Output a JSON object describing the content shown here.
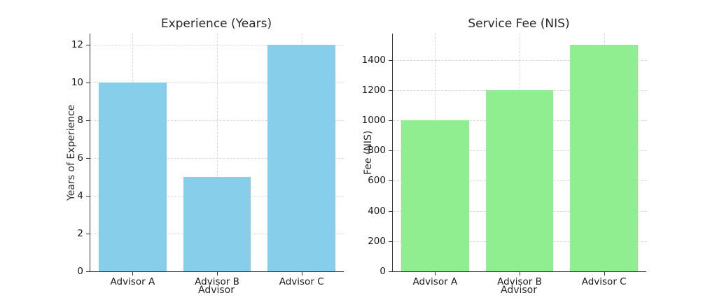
{
  "figure": {
    "background": "#ffffff",
    "spine_color": "#333333",
    "grid_color": "#d7d7d7",
    "text_color": "#2b2b2b"
  },
  "chart_data": [
    {
      "type": "bar",
      "title": "Experience (Years)",
      "xlabel": "Advisor",
      "ylabel": "Years of Experience",
      "categories": [
        "Advisor A",
        "Advisor B",
        "Advisor C"
      ],
      "values": [
        10,
        5,
        12
      ],
      "bar_color": "#87CEEB",
      "ylim": [
        0,
        12.6
      ],
      "yticks": [
        0,
        2,
        4,
        6,
        8,
        10,
        12
      ],
      "grid": true,
      "legend": "none"
    },
    {
      "type": "bar",
      "title": "Service Fee (NIS)",
      "xlabel": "Advisor",
      "ylabel": "Fee (NIS)",
      "categories": [
        "Advisor A",
        "Advisor B",
        "Advisor C"
      ],
      "values": [
        1000,
        1200,
        1500
      ],
      "bar_color": "#90EE90",
      "ylim": [
        0,
        1575
      ],
      "yticks": [
        0,
        200,
        400,
        600,
        800,
        1000,
        1200,
        1400
      ],
      "grid": true,
      "legend": "none"
    }
  ]
}
